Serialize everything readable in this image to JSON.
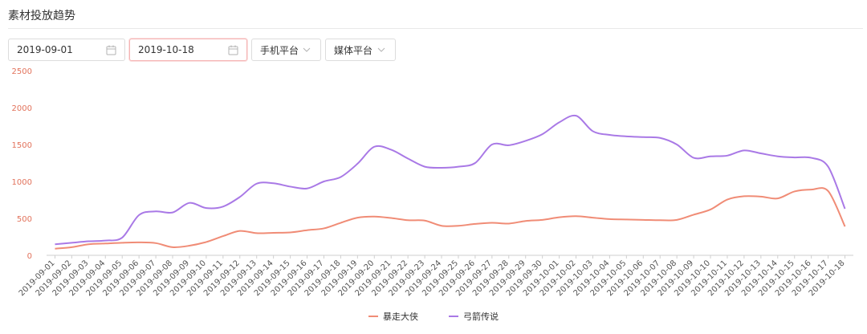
{
  "header": {
    "title": "素材投放趋势"
  },
  "filters": {
    "start_date": "2019-09-01",
    "end_date": "2019-10-18",
    "platform": "手机平台",
    "media": "媒体平台"
  },
  "colors": {
    "series1": "#f08c76",
    "series2": "#a979e6",
    "axis_text": "#e2725b",
    "grid": "#ececec"
  },
  "icons": {
    "date": "calendar-icon",
    "dropdown": "chevron-down-icon"
  },
  "chart_data": {
    "type": "line",
    "title": "",
    "xlabel": "",
    "ylabel": "",
    "ylim": [
      0,
      2500
    ],
    "yticks": [
      0,
      500,
      1000,
      1500,
      2000,
      2500
    ],
    "grid": false,
    "legend": "bottom-center",
    "categories": [
      "2019-09-01",
      "2019-09-02",
      "2019-09-03",
      "2019-09-04",
      "2019-09-05",
      "2019-09-06",
      "2019-09-07",
      "2019-09-08",
      "2019-09-09",
      "2019-09-10",
      "2019-09-11",
      "2019-09-12",
      "2019-09-13",
      "2019-09-14",
      "2019-09-15",
      "2019-09-16",
      "2019-09-17",
      "2019-09-18",
      "2019-09-19",
      "2019-09-20",
      "2019-09-21",
      "2019-09-22",
      "2019-09-23",
      "2019-09-24",
      "2019-09-25",
      "2019-09-26",
      "2019-09-27",
      "2019-09-28",
      "2019-09-29",
      "2019-09-30",
      "2019-10-01",
      "2019-10-02",
      "2019-10-03",
      "2019-10-04",
      "2019-10-05",
      "2019-10-06",
      "2019-10-07",
      "2019-10-08",
      "2019-10-09",
      "2019-10-10",
      "2019-10-11",
      "2019-10-12",
      "2019-10-13",
      "2019-10-14",
      "2019-10-15",
      "2019-10-16",
      "2019-10-17",
      "2019-10-18"
    ],
    "series": [
      {
        "name": "暴走大侠",
        "color": "#f08c76",
        "values": [
          90,
          110,
          150,
          160,
          170,
          175,
          165,
          110,
          130,
          180,
          260,
          330,
          300,
          305,
          310,
          340,
          365,
          440,
          510,
          525,
          505,
          475,
          470,
          400,
          400,
          425,
          440,
          430,
          465,
          480,
          515,
          530,
          510,
          490,
          485,
          480,
          475,
          480,
          550,
          620,
          755,
          800,
          795,
          770,
          865,
          890,
          870,
          390
        ]
      },
      {
        "name": "弓箭传说",
        "color": "#a979e6",
        "values": [
          150,
          170,
          190,
          200,
          240,
          545,
          595,
          580,
          710,
          640,
          660,
          790,
          970,
          975,
          930,
          905,
          1000,
          1060,
          1240,
          1470,
          1430,
          1310,
          1200,
          1185,
          1200,
          1250,
          1500,
          1490,
          1550,
          1640,
          1800,
          1890,
          1680,
          1630,
          1610,
          1600,
          1590,
          1500,
          1320,
          1340,
          1350,
          1420,
          1380,
          1340,
          1325,
          1320,
          1200,
          630
        ]
      }
    ]
  }
}
